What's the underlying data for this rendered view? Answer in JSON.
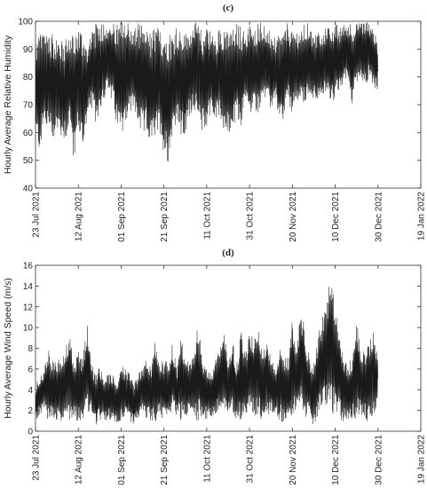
{
  "chart_data": [
    {
      "type": "line",
      "panel_label": "(c)",
      "title": "",
      "xlabel": "",
      "ylabel": "Hourly Average Relative Humidity",
      "xlim": [
        "2021-07-23",
        "2022-01-19"
      ],
      "ylim": [
        40,
        100
      ],
      "x_ticks": [
        "2021-07-23",
        "2021-08-12",
        "2021-09-01",
        "2021-09-21",
        "2021-10-11",
        "2021-10-31",
        "2021-11-20",
        "2021-12-10",
        "2021-12-30",
        "2022-01-19"
      ],
      "x_tick_labels": [
        "23 Jul 2021",
        "12 Aug 2021",
        "01 Sep 2021",
        "21 Sep 2021",
        "11 Oct 2021",
        "31 Oct 2021",
        "20 Nov 2021",
        "10 Dec 2021",
        "30 Dec 2021",
        "19 Jan 2022"
      ],
      "y_ticks": [
        40,
        50,
        60,
        70,
        80,
        90,
        100
      ],
      "y_tick_labels": [
        "40",
        "50",
        "60",
        "70",
        "80",
        "90",
        "100"
      ],
      "grid": false,
      "line_color": "#1a1a1a",
      "series": [
        {
          "x": [
            "2021-07-23",
            "2021-07-25",
            "2021-07-27",
            "2021-07-29",
            "2021-07-31",
            "2021-08-02",
            "2021-08-04",
            "2021-08-06",
            "2021-08-08",
            "2021-08-10",
            "2021-08-12",
            "2021-08-14",
            "2021-08-16",
            "2021-08-18",
            "2021-08-20",
            "2021-08-22",
            "2021-08-24",
            "2021-08-26",
            "2021-08-28",
            "2021-08-30",
            "2021-09-01",
            "2021-09-03",
            "2021-09-05",
            "2021-09-07",
            "2021-09-09",
            "2021-09-11",
            "2021-09-13",
            "2021-09-15",
            "2021-09-17",
            "2021-09-19",
            "2021-09-21",
            "2021-09-23",
            "2021-09-25",
            "2021-09-27",
            "2021-09-29",
            "2021-10-01",
            "2021-10-03",
            "2021-10-05",
            "2021-10-07",
            "2021-10-09",
            "2021-10-11",
            "2021-10-13",
            "2021-10-15",
            "2021-10-17",
            "2021-10-19",
            "2021-10-21",
            "2021-10-23",
            "2021-10-25",
            "2021-10-27",
            "2021-10-29",
            "2021-10-31",
            "2021-11-02",
            "2021-11-04",
            "2021-11-06",
            "2021-11-08",
            "2021-11-10",
            "2021-11-12",
            "2021-11-14",
            "2021-11-16",
            "2021-11-18",
            "2021-11-20",
            "2021-11-22",
            "2021-11-24",
            "2021-11-26",
            "2021-11-28",
            "2021-11-30",
            "2021-12-02",
            "2021-12-04",
            "2021-12-06",
            "2021-12-08",
            "2021-12-10",
            "2021-12-12",
            "2021-12-14",
            "2021-12-16",
            "2021-12-18",
            "2021-12-20",
            "2021-12-22",
            "2021-12-24",
            "2021-12-26",
            "2021-12-28",
            "2021-12-30"
          ],
          "min": [
            58,
            53,
            62,
            60,
            57,
            60,
            58,
            57,
            63,
            49,
            60,
            55,
            62,
            69,
            63,
            67,
            72,
            74,
            70,
            62,
            59,
            64,
            66,
            68,
            62,
            58,
            60,
            55,
            57,
            61,
            52,
            49,
            60,
            64,
            58,
            58,
            66,
            69,
            63,
            60,
            62,
            68,
            63,
            66,
            60,
            58,
            60,
            64,
            62,
            72,
            65,
            68,
            67,
            72,
            70,
            68,
            72,
            63,
            64,
            71,
            66,
            70,
            72,
            68,
            74,
            72,
            71,
            70,
            76,
            70,
            72,
            74,
            78,
            78,
            70,
            78,
            80,
            76,
            80,
            76,
            74
          ],
          "max": [
            93,
            96,
            97,
            98,
            95,
            95,
            93,
            94,
            96,
            95,
            99,
            96,
            92,
            97,
            99,
            100,
            100,
            100,
            100,
            99,
            100,
            100,
            100,
            97,
            100,
            99,
            97,
            96,
            99,
            97,
            96,
            97,
            95,
            99,
            97,
            96,
            97,
            100,
            99,
            96,
            100,
            96,
            94,
            98,
            99,
            96,
            97,
            100,
            98,
            96,
            99,
            97,
            100,
            100,
            98,
            96,
            94,
            95,
            97,
            100,
            96,
            97,
            96,
            100,
            99,
            94,
            97,
            96,
            98,
            99,
            100,
            97,
            100,
            100,
            100,
            99,
            100,
            100,
            100,
            98,
            91
          ]
        }
      ]
    },
    {
      "type": "line",
      "panel_label": "(d)",
      "title": "",
      "xlabel": "",
      "ylabel": "Hourly Average Wind Speed (m/s)",
      "xlim": [
        "2021-07-23",
        "2022-01-19"
      ],
      "ylim": [
        0,
        16
      ],
      "x_ticks": [
        "2021-07-23",
        "2021-08-12",
        "2021-09-01",
        "2021-09-21",
        "2021-10-11",
        "2021-10-31",
        "2021-11-20",
        "2021-12-10",
        "2021-12-30",
        "2022-01-19"
      ],
      "x_tick_labels": [
        "23 Jul 2021",
        "12 Aug 2021",
        "01 Sep 2021",
        "21 Sep 2021",
        "11 Oct 2021",
        "31 Oct 2021",
        "20 Nov 2021",
        "10 Dec 2021",
        "30 Dec 2021",
        "19 Jan 2022"
      ],
      "y_ticks": [
        0,
        2,
        4,
        6,
        8,
        10,
        12,
        14,
        16
      ],
      "y_tick_labels": [
        "0",
        "2",
        "4",
        "6",
        "8",
        "10",
        "12",
        "14",
        "16"
      ],
      "grid": false,
      "line_color": "#1a1a1a",
      "series": [
        {
          "x": [
            "2021-07-23",
            "2021-07-25",
            "2021-07-27",
            "2021-07-29",
            "2021-07-31",
            "2021-08-02",
            "2021-08-04",
            "2021-08-06",
            "2021-08-08",
            "2021-08-10",
            "2021-08-12",
            "2021-08-14",
            "2021-08-16",
            "2021-08-18",
            "2021-08-20",
            "2021-08-22",
            "2021-08-24",
            "2021-08-26",
            "2021-08-28",
            "2021-08-30",
            "2021-09-01",
            "2021-09-03",
            "2021-09-05",
            "2021-09-07",
            "2021-09-09",
            "2021-09-11",
            "2021-09-13",
            "2021-09-15",
            "2021-09-17",
            "2021-09-19",
            "2021-09-21",
            "2021-09-23",
            "2021-09-25",
            "2021-09-27",
            "2021-09-29",
            "2021-10-01",
            "2021-10-03",
            "2021-10-05",
            "2021-10-07",
            "2021-10-09",
            "2021-10-11",
            "2021-10-13",
            "2021-10-15",
            "2021-10-17",
            "2021-10-19",
            "2021-10-21",
            "2021-10-23",
            "2021-10-25",
            "2021-10-27",
            "2021-10-29",
            "2021-10-31",
            "2021-11-02",
            "2021-11-04",
            "2021-11-06",
            "2021-11-08",
            "2021-11-10",
            "2021-11-12",
            "2021-11-14",
            "2021-11-16",
            "2021-11-18",
            "2021-11-20",
            "2021-11-22",
            "2021-11-24",
            "2021-11-26",
            "2021-11-28",
            "2021-11-30",
            "2021-12-02",
            "2021-12-04",
            "2021-12-06",
            "2021-12-08",
            "2021-12-10",
            "2021-12-12",
            "2021-12-14",
            "2021-12-16",
            "2021-12-18",
            "2021-12-20",
            "2021-12-22",
            "2021-12-24",
            "2021-12-26",
            "2021-12-28",
            "2021-12-30"
          ],
          "min": [
            1.0,
            1.5,
            2.0,
            0.8,
            1.2,
            1.0,
            0.5,
            1.3,
            1.0,
            1.5,
            0.8,
            1.0,
            1.5,
            1.8,
            0.5,
            1.0,
            0.8,
            1.2,
            1.0,
            0.7,
            1.0,
            1.2,
            1.0,
            0.6,
            1.3,
            1.5,
            1.2,
            1.0,
            0.8,
            1.5,
            1.0,
            1.4,
            2.0,
            1.5,
            1.0,
            1.3,
            1.8,
            1.2,
            1.0,
            1.5,
            1.0,
            1.2,
            1.5,
            2.0,
            1.8,
            1.5,
            1.5,
            1.2,
            1.0,
            1.5,
            2.0,
            1.5,
            1.3,
            1.0,
            1.2,
            2.0,
            1.5,
            1.0,
            0.8,
            0.6,
            1.5,
            1.8,
            2.0,
            1.5,
            1.0,
            0.5,
            1.5,
            2.0,
            2.5,
            2.0,
            1.0,
            1.5,
            0.6,
            1.2,
            1.0,
            1.0,
            1.5,
            1.0,
            0.8,
            1.2,
            3.2
          ],
          "max": [
            4.5,
            5.5,
            6.0,
            8.3,
            7.0,
            6.5,
            7.5,
            8.5,
            9.2,
            6.5,
            8.0,
            7.0,
            10.7,
            7.0,
            5.5,
            6.5,
            5.0,
            5.5,
            5.5,
            4.5,
            6.5,
            6.0,
            5.5,
            4.5,
            5.5,
            6.5,
            7.0,
            6.0,
            8.8,
            6.5,
            7.0,
            6.5,
            8.5,
            6.0,
            9.0,
            7.0,
            6.5,
            8.0,
            10.3,
            7.0,
            6.5,
            5.5,
            7.0,
            8.0,
            9.5,
            7.0,
            9.0,
            6.5,
            10.0,
            7.5,
            9.5,
            9.0,
            10.8,
            8.0,
            9.0,
            7.0,
            6.0,
            8.0,
            7.5,
            7.0,
            11.0,
            8.0,
            12.0,
            9.5,
            7.0,
            6.5,
            9.5,
            11.0,
            12.5,
            15.4,
            12.0,
            9.5,
            7.5,
            6.0,
            7.5,
            11.2,
            7.5,
            8.0,
            9.0,
            10.3,
            7.0
          ]
        }
      ]
    }
  ]
}
